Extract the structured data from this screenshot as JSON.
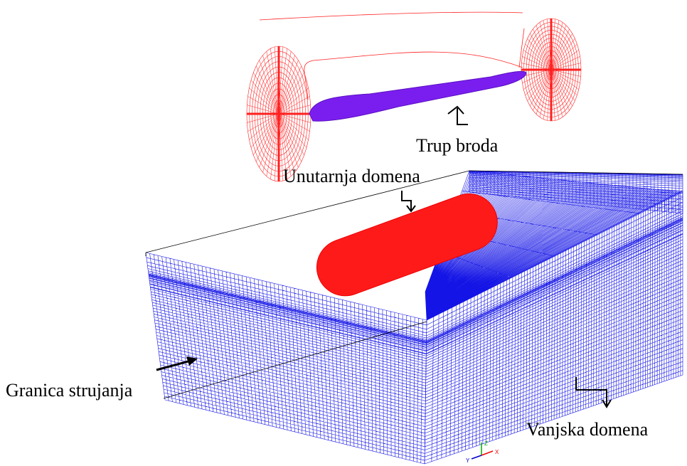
{
  "labels": {
    "hull": "Trup broda",
    "inner": "Unutarnja domena",
    "boundary": "Granica strujanja",
    "outer": "Vanjska domena"
  },
  "axes": {
    "x": "X",
    "y": "Y",
    "z": "Z"
  }
}
